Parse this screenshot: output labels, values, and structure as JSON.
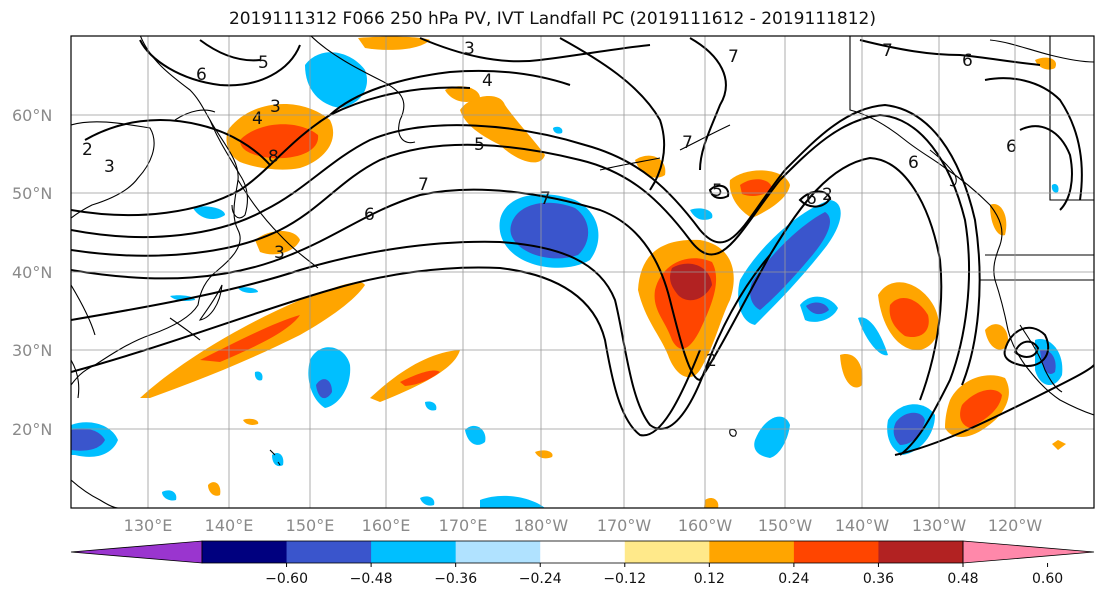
{
  "title": "2019111312 F066 250 hPa PV, IVT Landfall PC (2019111612 - 2019111812)",
  "lat_labels": [
    "60°N",
    "50°N",
    "40°N",
    "30°N",
    "20°N"
  ],
  "lon_labels": [
    "130°E",
    "140°E",
    "150°E",
    "160°E",
    "170°E",
    "180°W",
    "170°W",
    "160°W",
    "150°W",
    "140°W",
    "130°W",
    "120°W"
  ],
  "colorbar": {
    "colors": [
      "#9a35cf",
      "#00007f",
      "#3a55cc",
      "#00bfff",
      "#b0e2ff",
      "#ffffff",
      "#ffe98a",
      "#ffa500",
      "#ff4500",
      "#b22222",
      "#ff88aa"
    ],
    "tick_labels": [
      "−0.60",
      "−0.48",
      "−0.36",
      "−0.24",
      "−0.12",
      "0.12",
      "0.24",
      "0.36",
      "0.48",
      "0.60"
    ]
  },
  "contour_labels": [
    "6",
    "5",
    "3",
    "2",
    "4",
    "3",
    "4",
    "8",
    "3",
    "5",
    "7",
    "6",
    "7",
    "7",
    "7",
    "6",
    "2",
    "5",
    "6",
    "7",
    "6",
    "2",
    "6",
    "3"
  ]
}
